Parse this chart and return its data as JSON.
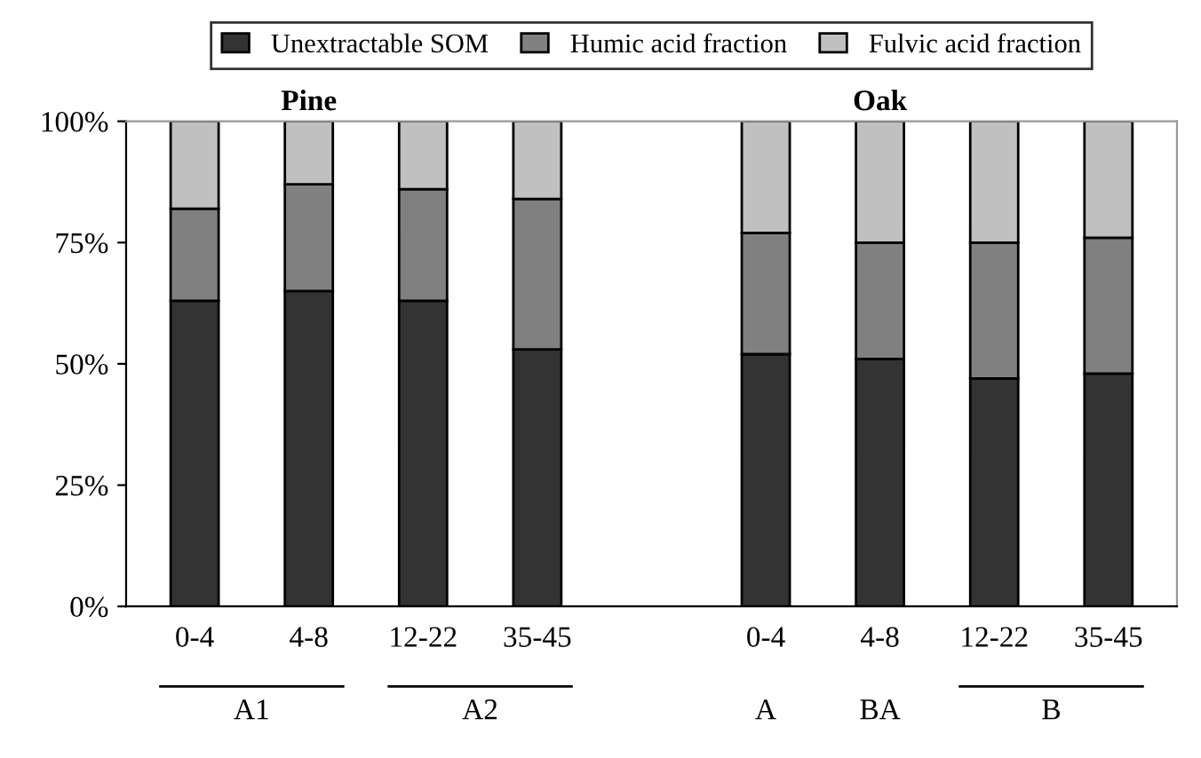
{
  "chart_data": {
    "type": "bar",
    "stacked": true,
    "categories": [
      "0-4",
      "4-8",
      "12-22",
      "35-45",
      null,
      "0-4",
      "4-8",
      "12-22",
      "35-45"
    ],
    "series": [
      {
        "name": "Unextractable SOM",
        "color": "#333333",
        "values": [
          63,
          65,
          63,
          53,
          null,
          52,
          51,
          47,
          48
        ]
      },
      {
        "name": "Humic acid fraction",
        "color": "#808080",
        "values": [
          19,
          22,
          23,
          31,
          null,
          25,
          24,
          28,
          28
        ]
      },
      {
        "name": "Fulvic acid fraction",
        "color": "#c0c0c0",
        "values": [
          18,
          13,
          14,
          16,
          null,
          23,
          25,
          25,
          24
        ]
      }
    ],
    "ylim": [
      0,
      100
    ],
    "yticks": [
      {
        "value": 0,
        "label": "0%"
      },
      {
        "value": 25,
        "label": "25%"
      },
      {
        "value": 50,
        "label": "50%"
      },
      {
        "value": 75,
        "label": "75%"
      },
      {
        "value": 100,
        "label": "100%"
      }
    ],
    "annotations": [
      "Pine",
      "Oak",
      "A1",
      "A2",
      "A",
      "BA",
      "B"
    ],
    "legend": "top",
    "grid": false
  }
}
